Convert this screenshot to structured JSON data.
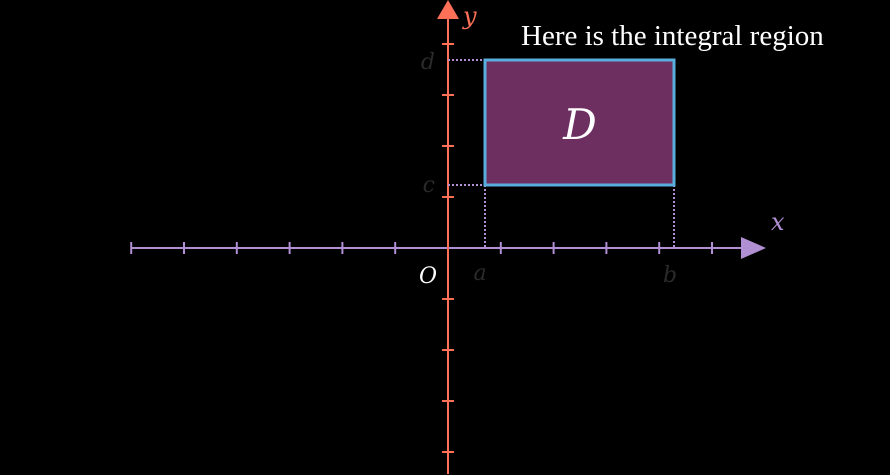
{
  "caption": "Here is the integral region",
  "colors": {
    "background": "#000000",
    "x_axis": "#b08fd3",
    "y_axis": "#ff7058",
    "region_fill": "#6d2e60",
    "region_stroke": "#5aaede",
    "guide_lines": "#b08fd3",
    "faded_label": "#2a2a2a",
    "origin_label": "#ffffff",
    "region_label": "#ffffff"
  },
  "axes": {
    "x_label": "x",
    "y_label": "y",
    "origin_label": "O"
  },
  "bounds": {
    "a": "a",
    "b": "b",
    "c": "c",
    "d": "d"
  },
  "region": {
    "label": "D"
  }
}
